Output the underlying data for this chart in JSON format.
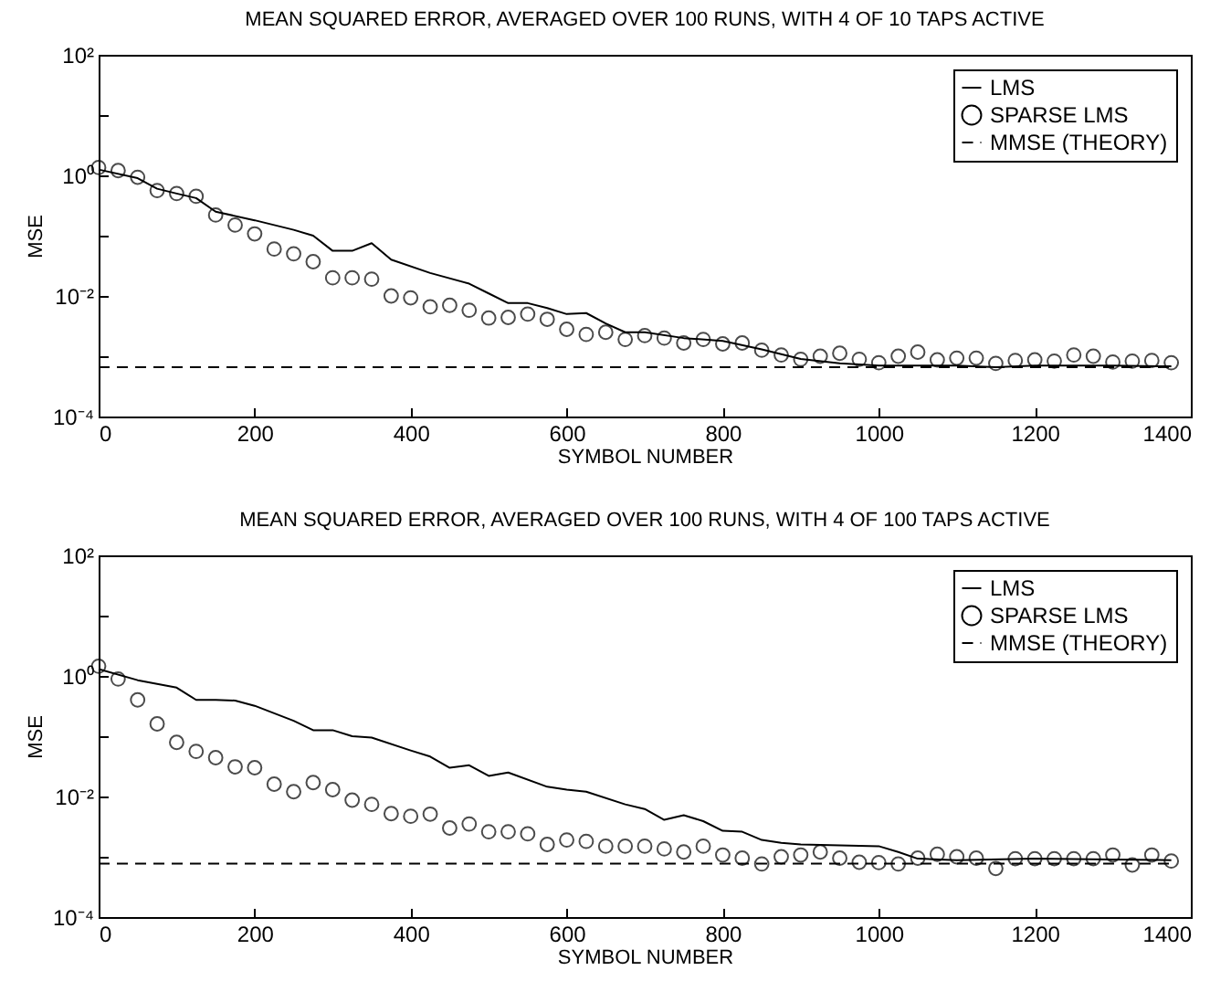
{
  "chart_data": [
    {
      "type": "line",
      "title": "MEAN SQUARED ERROR, AVERAGED OVER 100 RUNS, WITH 4 OF 10 TAPS ACTIVE",
      "xlabel": "SYMBOL NUMBER",
      "ylabel": "MSE",
      "log": "y",
      "grid": false,
      "legend": "top right",
      "xlim": [
        0,
        1400
      ],
      "xticks": [
        0,
        200,
        400,
        600,
        800,
        1000,
        1200,
        1400
      ],
      "ylim": [
        0.0001,
        100
      ],
      "yticks": [
        {
          "value": 0.0001,
          "label": "10⁻⁴"
        },
        {
          "value": 0.001,
          "label": null
        },
        {
          "value": 0.01,
          "label": "10⁻²"
        },
        {
          "value": 0.1,
          "label": null
        },
        {
          "value": 1,
          "label": "10⁰"
        },
        {
          "value": 10,
          "label": null
        },
        {
          "value": 100,
          "label": "10²"
        }
      ],
      "series": [
        {
          "name": "LMS",
          "type": "line",
          "line_style": "solid",
          "color": "#000000",
          "x": [
            0,
            50,
            75,
            100,
            125,
            150,
            200,
            250,
            275,
            300,
            325,
            350,
            375,
            425,
            475,
            500,
            525,
            550,
            575,
            600,
            625,
            650,
            675,
            700,
            750,
            800,
            850,
            900,
            950,
            1000,
            1100,
            1150,
            1200,
            1300,
            1375
          ],
          "values": [
            1.25,
            0.9,
            0.6,
            0.5,
            0.42,
            0.25,
            0.18,
            0.125,
            0.1,
            0.056,
            0.056,
            0.075,
            0.04,
            0.024,
            0.016,
            0.011,
            0.0076,
            0.0076,
            0.0063,
            0.005,
            0.0052,
            0.0035,
            0.0025,
            0.0025,
            0.002,
            0.0018,
            0.0013,
            0.0009,
            0.00076,
            0.0007,
            0.0007,
            0.00066,
            0.0007,
            0.0007,
            0.00068
          ]
        },
        {
          "name": "SPARSE LMS",
          "type": "scatter",
          "marker": "circle",
          "color": "#000000",
          "x": [
            0,
            25,
            50,
            75,
            100,
            125,
            150,
            175,
            200,
            225,
            250,
            275,
            300,
            325,
            350,
            375,
            400,
            425,
            450,
            475,
            500,
            525,
            550,
            575,
            600,
            625,
            650,
            675,
            700,
            725,
            750,
            775,
            800,
            825,
            850,
            875,
            900,
            925,
            950,
            975,
            1000,
            1025,
            1050,
            1075,
            1100,
            1125,
            1150,
            1175,
            1200,
            1225,
            1250,
            1275,
            1300,
            1325,
            1350,
            1375
          ],
          "values": [
            1.35,
            1.2,
            0.93,
            0.56,
            0.5,
            0.45,
            0.22,
            0.15,
            0.107,
            0.06,
            0.05,
            0.037,
            0.02,
            0.02,
            0.019,
            0.01,
            0.0093,
            0.0066,
            0.007,
            0.0058,
            0.0043,
            0.0044,
            0.005,
            0.0041,
            0.0028,
            0.0023,
            0.0025,
            0.0019,
            0.0022,
            0.002,
            0.00166,
            0.0019,
            0.0016,
            0.00166,
            0.00126,
            0.00105,
            0.00089,
            0.001,
            0.00112,
            0.00089,
            0.00078,
            0.001,
            0.00117,
            0.00087,
            0.00093,
            0.00093,
            0.00076,
            0.00085,
            0.00087,
            0.00083,
            0.00105,
            0.001,
            0.0008,
            0.00083,
            0.00085,
            0.00078
          ]
        },
        {
          "name": "MMSE (THEORY)",
          "type": "line",
          "line_style": "dashed",
          "color": "#000000",
          "x": [
            0,
            1380
          ],
          "values": [
            0.00066,
            0.00066
          ]
        }
      ]
    },
    {
      "type": "line",
      "title": "MEAN SQUARED ERROR, AVERAGED OVER 100 RUNS, WITH 4 OF 100 TAPS ACTIVE",
      "xlabel": "SYMBOL NUMBER",
      "ylabel": "MSE",
      "log": "y",
      "grid": false,
      "legend": "top right",
      "xlim": [
        0,
        1400
      ],
      "xticks": [
        0,
        200,
        400,
        600,
        800,
        1000,
        1200,
        1400
      ],
      "ylim": [
        0.0001,
        100
      ],
      "yticks": [
        {
          "value": 0.0001,
          "label": "10⁻⁴"
        },
        {
          "value": 0.001,
          "label": null
        },
        {
          "value": 0.01,
          "label": "10⁻²"
        },
        {
          "value": 0.1,
          "label": null
        },
        {
          "value": 1,
          "label": "10⁰"
        },
        {
          "value": 10,
          "label": null
        },
        {
          "value": 100,
          "label": "10²"
        }
      ],
      "series": [
        {
          "name": "LMS",
          "type": "line",
          "line_style": "solid",
          "color": "#000000",
          "x": [
            0,
            50,
            100,
            125,
            150,
            175,
            200,
            250,
            275,
            300,
            325,
            350,
            400,
            425,
            450,
            475,
            500,
            525,
            575,
            600,
            625,
            675,
            700,
            725,
            750,
            775,
            800,
            825,
            850,
            875,
            900,
            1000,
            1025,
            1050,
            1100,
            1200,
            1300,
            1375
          ],
          "values": [
            1.3,
            0.85,
            0.64,
            0.4,
            0.4,
            0.39,
            0.32,
            0.18,
            0.126,
            0.126,
            0.1,
            0.095,
            0.058,
            0.046,
            0.03,
            0.033,
            0.022,
            0.025,
            0.0145,
            0.013,
            0.012,
            0.0074,
            0.0062,
            0.0041,
            0.0049,
            0.0039,
            0.0027,
            0.0026,
            0.0019,
            0.0017,
            0.0016,
            0.0015,
            0.0012,
            0.00093,
            0.00088,
            0.00093,
            0.0009,
            0.00088
          ]
        },
        {
          "name": "SPARSE LMS",
          "type": "scatter",
          "marker": "circle",
          "color": "#000000",
          "x": [
            0,
            25,
            50,
            75,
            100,
            125,
            150,
            175,
            200,
            225,
            250,
            275,
            300,
            325,
            350,
            375,
            400,
            425,
            450,
            475,
            500,
            525,
            550,
            575,
            600,
            625,
            650,
            675,
            700,
            725,
            750,
            775,
            800,
            825,
            850,
            875,
            900,
            925,
            950,
            975,
            1000,
            1025,
            1050,
            1075,
            1100,
            1125,
            1150,
            1175,
            1200,
            1225,
            1250,
            1275,
            1300,
            1325,
            1350,
            1375
          ],
          "values": [
            1.45,
            0.89,
            0.4,
            0.16,
            0.079,
            0.056,
            0.044,
            0.031,
            0.03,
            0.016,
            0.012,
            0.017,
            0.013,
            0.0087,
            0.0074,
            0.0052,
            0.0047,
            0.0051,
            0.003,
            0.0035,
            0.0026,
            0.0026,
            0.0024,
            0.0016,
            0.0019,
            0.0018,
            0.0015,
            0.0015,
            0.0015,
            0.00135,
            0.0012,
            0.0015,
            0.00107,
            0.00095,
            0.00076,
            0.001,
            0.00107,
            0.0012,
            0.00095,
            0.00081,
            0.0008,
            0.00076,
            0.00095,
            0.0011,
            0.001,
            0.00095,
            0.00064,
            0.00093,
            0.00093,
            0.00093,
            0.00093,
            0.00093,
            0.00107,
            0.00073,
            0.00107,
            0.00085
          ]
        },
        {
          "name": "MMSE (THEORY)",
          "type": "line",
          "line_style": "dashed",
          "color": "#000000",
          "x": [
            0,
            1380
          ],
          "values": [
            0.00077,
            0.00077
          ]
        }
      ]
    }
  ]
}
